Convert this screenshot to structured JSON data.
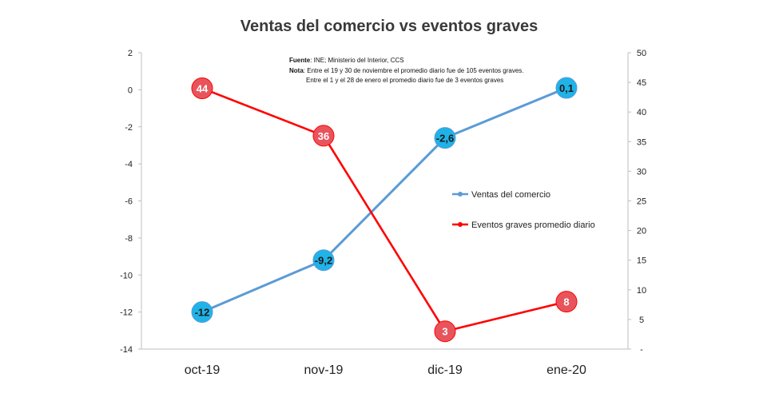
{
  "chart_data": {
    "type": "line",
    "title": "Ventas del comercio vs eventos graves",
    "categories": [
      "oct-19",
      "nov-19",
      "dic-19",
      "ene-20"
    ],
    "y_left": {
      "min": -14,
      "max": 2,
      "step": 2,
      "ticks": [
        "2",
        "0",
        "-2",
        "-4",
        "-6",
        "-8",
        "-10",
        "-12",
        "-14"
      ]
    },
    "y_right": {
      "min": 0,
      "max": 50,
      "step": 5,
      "ticks": [
        "50",
        "45",
        "40",
        "35",
        "30",
        "25",
        "20",
        "15",
        "10",
        "5",
        "-"
      ]
    },
    "series": [
      {
        "name": "Ventas del comercio",
        "axis": "left",
        "color": "#5b9bd5",
        "marker_color": "#1fb3e8",
        "values": [
          -12,
          -9.2,
          -2.6,
          0.1
        ],
        "labels": [
          "-12",
          "-9,2",
          "-2,6",
          "0,1"
        ]
      },
      {
        "name": "Eventos graves promedio diario",
        "axis": "right",
        "color": "#ff0000",
        "marker_color": "#e8545c",
        "values": [
          44,
          36,
          3,
          8
        ],
        "labels": [
          "44",
          "36",
          "3",
          "8"
        ]
      }
    ],
    "legend_position": "center-right",
    "grid": false
  },
  "notes": {
    "source_label": "Fuente",
    "source_text": ": INE; Ministerio del Interior, CCS",
    "note_label": "Nota",
    "note_line1": ": Entre el 19 y 30 de noviembre el promedio diario fue de 105  eventos graves.",
    "note_line2": "Entre el 1 y el 28 de enero el promedio diario fue de 3 eventos graves"
  }
}
